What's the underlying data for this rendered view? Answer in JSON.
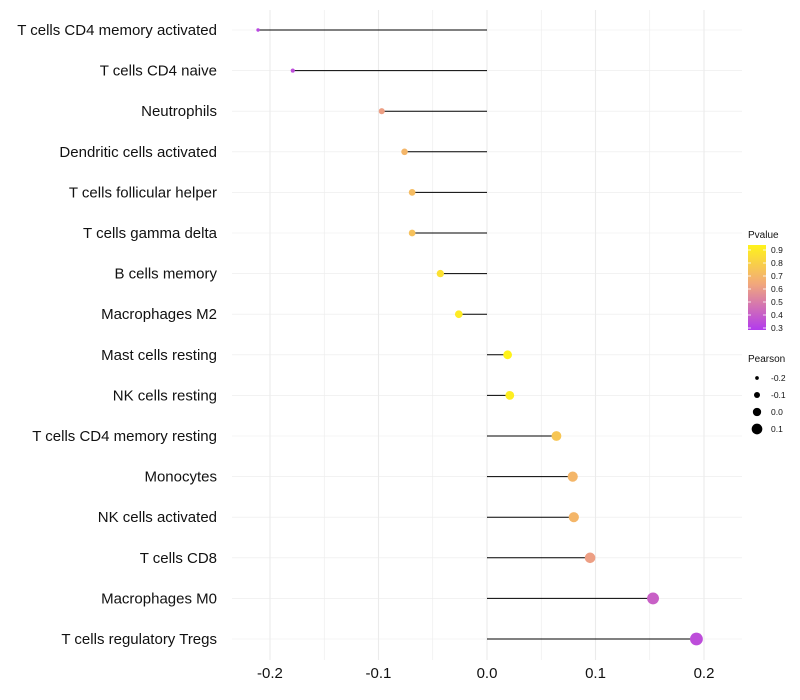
{
  "chart_data": {
    "type": "lollipop",
    "title": "",
    "xlabel": "",
    "ylabel": "",
    "xlim": [
      -0.235,
      0.235
    ],
    "x_ticks": [
      -0.2,
      -0.1,
      0.0,
      0.1,
      0.2
    ],
    "x_tick_labels": [
      "-0.2",
      "-0.1",
      "0.0",
      "0.1",
      "0.2"
    ],
    "grid": true,
    "categories": [
      "T cells CD4 memory activated",
      "T cells CD4 naive",
      "Neutrophils",
      "Dendritic cells activated",
      "T cells follicular helper",
      "T cells gamma delta",
      "B cells memory",
      "Macrophages M2",
      "Mast cells resting",
      "NK cells resting",
      "T cells CD4 memory resting",
      "Monocytes",
      "NK cells activated",
      "T cells CD8",
      "Macrophages M0",
      "T cells regulatory  Tregs "
    ],
    "pearson": [
      -0.211,
      -0.179,
      -0.097,
      -0.076,
      -0.069,
      -0.069,
      -0.043,
      -0.026,
      0.019,
      0.021,
      0.064,
      0.079,
      0.08,
      0.095,
      0.153,
      0.193
    ],
    "pvalue": [
      0.34,
      0.36,
      0.62,
      0.7,
      0.72,
      0.74,
      0.86,
      0.9,
      0.93,
      0.91,
      0.76,
      0.7,
      0.7,
      0.62,
      0.42,
      0.36
    ],
    "legend_color": {
      "title": "Pvalue",
      "ticks": [
        "0.9",
        "0.8",
        "0.7",
        "0.6",
        "0.5",
        "0.4",
        "0.3"
      ],
      "low_color": "#b23aee",
      "mid_color": "#f2a97a",
      "high_color": "#fff31a",
      "placement": "right"
    },
    "legend_size": {
      "title": "Pearson",
      "ticks": [
        "-0.2",
        "-0.1",
        "0.0",
        "0.1"
      ],
      "placement": "right"
    }
  },
  "colors": {
    "segment": "#000000",
    "grid": "#ebebeb",
    "background": "#ffffff"
  }
}
